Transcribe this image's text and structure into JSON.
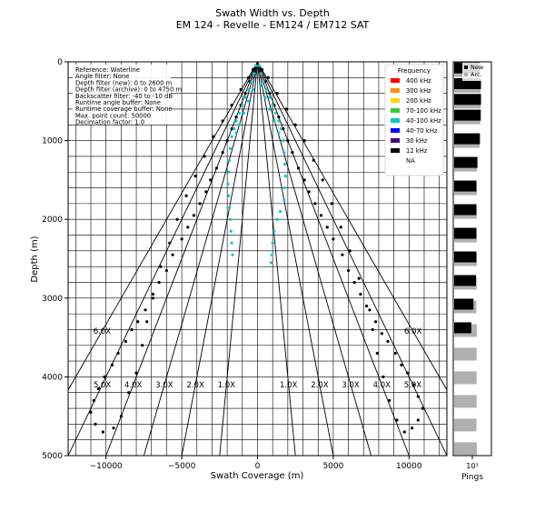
{
  "title": "Swath Width vs. Depth",
  "subtitle": "EM 124 - Revelle - EM124 / EM712 SAT",
  "chart_data": [
    {
      "type": "scatter",
      "xlabel": "Swath Coverage (m)",
      "ylabel": "Depth (m)",
      "xlim": [
        -12500,
        12500
      ],
      "ylim": [
        5000,
        0
      ],
      "y_inverted": true,
      "xticks": [
        -10000,
        -5000,
        0,
        5000,
        10000
      ],
      "yticks": [
        0,
        1000,
        2000,
        3000,
        4000,
        5000
      ],
      "xtick_labels": [
        "−10000",
        "−5000",
        "0",
        "5000",
        "10000"
      ],
      "ytick_labels": [
        "0",
        "1000",
        "2000",
        "3000",
        "4000",
        "5000"
      ],
      "grid": true,
      "grid_x_step": 1000,
      "grid_y_step": 200,
      "legend": {
        "title": "Frequency",
        "placement": "top-right",
        "entries": [
          {
            "label": "400 kHz",
            "color": "#ff0000"
          },
          {
            "label": "300 kHz",
            "color": "#ff8c00"
          },
          {
            "label": "200 kHz",
            "color": "#ffd700"
          },
          {
            "label": "70-100 kHz",
            "color": "#32cd32"
          },
          {
            "label": "40-100 kHz",
            "color": "#00c8c8"
          },
          {
            "label": "40-70 kHz",
            "color": "#0000ff"
          },
          {
            "label": "30 kHz",
            "color": "#4b0082"
          },
          {
            "label": "12 kHz",
            "color": "#000000"
          },
          {
            "label": "NA",
            "color": "#ffffff"
          }
        ]
      },
      "info_text": [
        "Reference: Waterline",
        "Angle filter: None",
        "Depth filter (new): 0 to 2600 m",
        "Depth filter (archive): 0 to 4750 m",
        "Backscatter filter: -40 to -10 dB",
        "Runtime angle buffer: None",
        "Runtime coverage buffer: None",
        "Max. point count: 50000",
        "Decimation factor: 1.0"
      ],
      "coverage_lines": [
        {
          "label": "1.0X",
          "ratio": 1.0
        },
        {
          "label": "2.0X",
          "ratio": 2.0
        },
        {
          "label": "3.0X",
          "ratio": 3.0
        },
        {
          "label": "4.0X",
          "ratio": 4.0
        },
        {
          "label": "5.0X",
          "ratio": 5.0
        },
        {
          "label": "6.0X",
          "ratio": 6.0
        }
      ],
      "coverage_label_depth": 4100,
      "outer_label_depth": 3420,
      "outer_label": "6.0X",
      "series": [
        {
          "name": "12 kHz",
          "color": "#000000",
          "points": [
            [
              -300,
              100
            ],
            [
              -500,
              250
            ],
            [
              -800,
              400
            ],
            [
              -1100,
              550
            ],
            [
              -1400,
              700
            ],
            [
              -1700,
              850
            ],
            [
              -2000,
              1000
            ],
            [
              -2300,
              1150
            ],
            [
              -2700,
              1350
            ],
            [
              -3100,
              1500
            ],
            [
              -3400,
              1650
            ],
            [
              -3800,
              1800
            ],
            [
              -4200,
              1950
            ],
            [
              -4600,
              2100
            ],
            [
              -5000,
              2250
            ],
            [
              -5600,
              2450
            ],
            [
              -6000,
              2650
            ],
            [
              -6500,
              2800
            ],
            [
              -6900,
              3000
            ],
            [
              -7400,
              3150
            ],
            [
              -7900,
              3300
            ],
            [
              -8300,
              3400
            ],
            [
              -8700,
              3550
            ],
            [
              -9200,
              3700
            ],
            [
              -9600,
              3850
            ],
            [
              -10100,
              4000
            ],
            [
              -10500,
              4150
            ],
            [
              -10800,
              4300
            ],
            [
              -11000,
              4450
            ],
            [
              -10700,
              4600
            ],
            [
              -10200,
              4700
            ],
            [
              -9500,
              4650
            ],
            [
              -9000,
              4500
            ],
            [
              -8500,
              4200
            ],
            [
              -8000,
              3950
            ],
            [
              -7600,
              3600
            ],
            [
              -7300,
              3300
            ],
            [
              -6900,
              2950
            ],
            [
              -6400,
              2600
            ],
            [
              -5800,
              2300
            ],
            [
              -5300,
              2000
            ],
            [
              -4700,
              1700
            ],
            [
              -4100,
              1450
            ],
            [
              -3500,
              1200
            ],
            [
              -2900,
              950
            ],
            [
              -2300,
              750
            ],
            [
              -1700,
              550
            ],
            [
              -1100,
              350
            ],
            [
              -600,
              200
            ],
            [
              300,
              100
            ],
            [
              500,
              250
            ],
            [
              800,
              400
            ],
            [
              1100,
              550
            ],
            [
              1400,
              700
            ],
            [
              1700,
              850
            ],
            [
              2000,
              1000
            ],
            [
              2300,
              1150
            ],
            [
              2700,
              1350
            ],
            [
              3100,
              1500
            ],
            [
              3400,
              1650
            ],
            [
              3800,
              1800
            ],
            [
              4200,
              1950
            ],
            [
              4600,
              2100
            ],
            [
              5000,
              2250
            ],
            [
              5600,
              2450
            ],
            [
              6000,
              2650
            ],
            [
              6400,
              2800
            ],
            [
              6800,
              2950
            ],
            [
              7400,
              3150
            ],
            [
              7800,
              3300
            ],
            [
              8200,
              3450
            ],
            [
              8600,
              3550
            ],
            [
              9100,
              3700
            ],
            [
              9500,
              3850
            ],
            [
              9900,
              3950
            ],
            [
              10300,
              4100
            ],
            [
              10600,
              4250
            ],
            [
              10900,
              4400
            ],
            [
              10600,
              4550
            ],
            [
              10200,
              4650
            ],
            [
              9700,
              4700
            ],
            [
              9200,
              4550
            ],
            [
              8700,
              4300
            ],
            [
              8300,
              4000
            ],
            [
              7900,
              3700
            ],
            [
              7600,
              3400
            ],
            [
              7200,
              3100
            ],
            [
              6700,
              2750
            ],
            [
              6100,
              2400
            ],
            [
              5500,
              2100
            ],
            [
              4900,
              1800
            ],
            [
              4300,
              1500
            ],
            [
              3700,
              1250
            ],
            [
              3100,
              1000
            ],
            [
              2500,
              800
            ],
            [
              1900,
              600
            ],
            [
              1300,
              400
            ],
            [
              700,
              200
            ]
          ]
        },
        {
          "name": "40-100 kHz",
          "color": "#00c8c8",
          "points": [
            [
              -100,
              50
            ],
            [
              -250,
              150
            ],
            [
              -400,
              250
            ],
            [
              -600,
              350
            ],
            [
              -800,
              450
            ],
            [
              -1000,
              550
            ],
            [
              -1200,
              650
            ],
            [
              -1400,
              750
            ],
            [
              -1550,
              850
            ],
            [
              -1700,
              950
            ],
            [
              -1800,
              1100
            ],
            [
              -1850,
              1250
            ],
            [
              -1900,
              1400
            ],
            [
              -1950,
              1550
            ],
            [
              -1900,
              1700
            ],
            [
              -1850,
              1850
            ],
            [
              -1800,
              2000
            ],
            [
              -1750,
              2150
            ],
            [
              -1700,
              2300
            ],
            [
              -1650,
              2450
            ],
            [
              -1400,
              900
            ],
            [
              -1200,
              800
            ],
            [
              -900,
              650
            ],
            [
              -600,
              500
            ],
            [
              -300,
              350
            ],
            [
              100,
              50
            ],
            [
              250,
              150
            ],
            [
              400,
              250
            ],
            [
              600,
              350
            ],
            [
              800,
              450
            ],
            [
              1000,
              550
            ],
            [
              1200,
              650
            ],
            [
              1400,
              750
            ],
            [
              1550,
              850
            ],
            [
              1700,
              1000
            ],
            [
              1750,
              1150
            ],
            [
              1800,
              1300
            ],
            [
              1850,
              1450
            ],
            [
              1800,
              1600
            ],
            [
              1750,
              1750
            ],
            [
              1500,
              1900
            ],
            [
              1300,
              2000
            ],
            [
              1100,
              2150
            ],
            [
              1000,
              2300
            ],
            [
              950,
              2450
            ],
            [
              900,
              2550
            ],
            [
              1400,
              900
            ],
            [
              1100,
              750
            ],
            [
              800,
              600
            ],
            [
              500,
              450
            ],
            [
              200,
              300
            ]
          ]
        }
      ]
    },
    {
      "type": "bar",
      "orientation": "horizontal",
      "xlabel": "Pings",
      "xscale": "log",
      "xtick_label": "10³",
      "legend": {
        "placement": "top-right",
        "entries": [
          {
            "label": "New",
            "color": "#000000"
          },
          {
            "label": "Arc.",
            "color": "#b0b0b0"
          }
        ]
      },
      "depth_bins": [
        100,
        300,
        500,
        700,
        1000,
        1300,
        1600,
        1900,
        2200,
        2500,
        2800,
        3100,
        3400,
        3700,
        4000,
        4300,
        4600,
        4900
      ],
      "series": [
        {
          "name": "New",
          "color": "#000000",
          "values": [
            1200,
            1600,
            1600,
            1500,
            1200,
            600,
            450,
            450,
            450,
            450,
            400,
            200,
            110,
            0,
            0,
            0,
            0,
            0
          ]
        },
        {
          "name": "Arc.",
          "color": "#b0b0b0",
          "values": [
            1100,
            1400,
            1450,
            1300,
            1100,
            550,
            500,
            500,
            500,
            500,
            500,
            450,
            500,
            480,
            480,
            480,
            460,
            500
          ]
        }
      ]
    }
  ]
}
